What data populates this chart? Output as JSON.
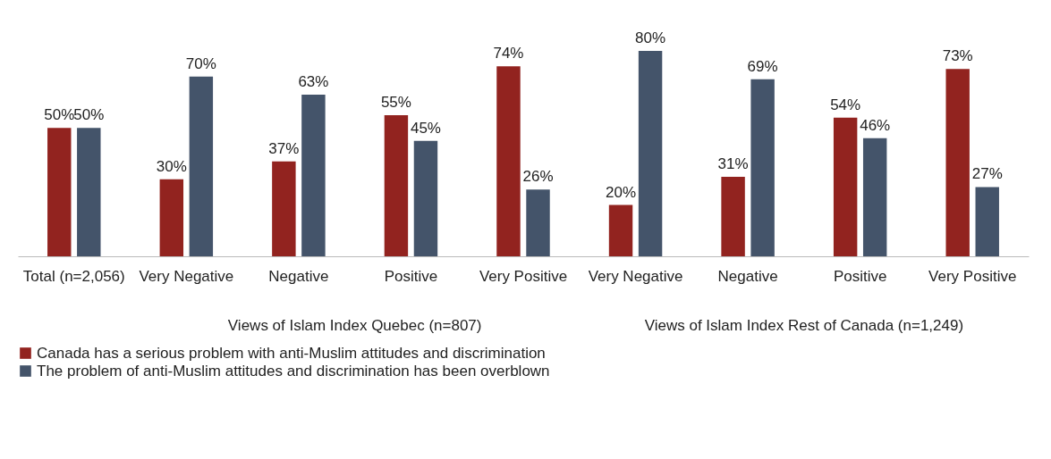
{
  "chart_data": {
    "type": "bar",
    "categories": [
      "Total (n=2,056)",
      "Very Negative",
      "Negative",
      "Positive",
      "Very Positive",
      "Very Negative",
      "Negative",
      "Positive",
      "Very Positive"
    ],
    "annotations": [
      "Views of Islam Index Quebec (n=807)",
      "Views of Islam Index Rest of Canada (n=1,249)"
    ],
    "series": [
      {
        "name": "Canada has a serious problem with anti-Muslim attitudes and discrimination",
        "color": "#92231f",
        "values": [
          50,
          30,
          37,
          55,
          74,
          20,
          31,
          54,
          73
        ],
        "value_labels": [
          "50%",
          "30%",
          "37%",
          "55%",
          "74%",
          "20%",
          "31%",
          "54%",
          "73%"
        ]
      },
      {
        "name": "The problem of anti-Muslim attitudes and discrimination has been overblown",
        "color": "#44546a",
        "values": [
          50,
          70,
          63,
          45,
          26,
          80,
          69,
          46,
          27
        ],
        "value_labels": [
          "50%",
          "70%",
          "63%",
          "45%",
          "26%",
          "80%",
          "69%",
          "46%",
          "27%"
        ]
      }
    ],
    "legend": "bottom",
    "grid": false
  }
}
